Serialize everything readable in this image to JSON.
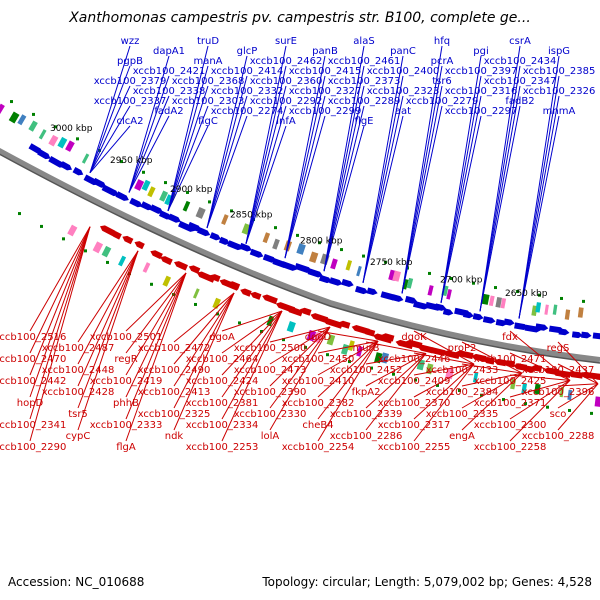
{
  "title": "Xanthomonas campestris pv. campestris str. B100, complete ge...",
  "footer": {
    "accession": "Accession: NC_010688",
    "stats": "Topology: circular; Length: 5,079,002 bp; Genes: 4,528"
  },
  "colors": {
    "forward": "#0000cc",
    "reverse": "#cc0000",
    "backbone": "#808080"
  },
  "kbp_marks": [
    "3000 kbp",
    "2950 kbp",
    "2900 kbp",
    "2850 kbp",
    "2800 kbp",
    "2750 kbp",
    "2700 kbp",
    "2650 kbp"
  ],
  "top_labels": [
    "wzz",
    "truD",
    "surE",
    "alaS",
    "hfq",
    "csrA",
    "dapA1",
    "glcP",
    "panB",
    "panC",
    "pgi",
    "ispG",
    "pgpB",
    "manA",
    "xccb100_2462",
    "xccb100_2461",
    "pcrA",
    "xccb100_2434",
    "xccb100_2421",
    "xccb100_2414",
    "xccb100_2415",
    "xccb100_2400",
    "xccb100_2397",
    "xccb100_2385",
    "xccb100_2379",
    "xccb100_2368",
    "xccb100_2360",
    "xccb100_2373",
    "tsr6",
    "xccb100_2347",
    "xccb100_2338",
    "xccb100_2332",
    "xccb100_2327",
    "xccb100_2323",
    "xccb100_2316",
    "xccb100_2326",
    "xccb100_2337",
    "xccb100_2303",
    "xccb100_2292",
    "xccb100_2289",
    "xccb100_2279",
    "fadB2",
    "fadA2",
    "xccb100_2274",
    "xccb100_2299",
    "aat",
    "xccb100_2297",
    "mnmA",
    "clcA2",
    "flgC",
    "infA",
    "flgE"
  ],
  "bottom_labels": [
    "xccb100_2516",
    "xccb100_2501",
    "dgoA",
    "dgoD",
    "dgoK",
    "fdx",
    "xccb100_2487",
    "xccb100_2472",
    "xccb100_2500",
    "murB",
    "proP2",
    "regS",
    "xccb100_2470",
    "regR",
    "xccb100_2464",
    "xccb100_2450",
    "xccb100_2446",
    "xccb100_2471",
    "xccb100_2448",
    "xccb100_2490",
    "xccb100_2473",
    "xccb100_2452",
    "xccb100_2433",
    "xccb100_2437",
    "xccb100_2442",
    "xccb100_2419",
    "xccb100_2424",
    "xccb100_2410",
    "xccb100_2409",
    "xccb100_2425",
    "xccb100_2428",
    "xccb100_2413",
    "xccb100_2390",
    "fkpA2",
    "xccb100_2384",
    "xccb100_2396",
    "hopD",
    "phhB",
    "xccb100_2381",
    "xccb100_2382",
    "xccb100_2370",
    "xccb100_2371",
    "tsr5",
    "xccb100_2325",
    "xccb100_2330",
    "xccb100_2339",
    "xccb100_2335",
    "sco",
    "xccb100_2341",
    "xccb100_2333",
    "xccb100_2334",
    "cheB4",
    "xccb100_2317",
    "xccb100_2300",
    "cypC",
    "ndk",
    "lolA",
    "xccb100_2286",
    "engA",
    "xccb100_2288",
    "xccb100_2290",
    "flgA",
    "xccb100_2253",
    "xccb100_2254",
    "xccb100_2255",
    "xccb100_2258"
  ]
}
